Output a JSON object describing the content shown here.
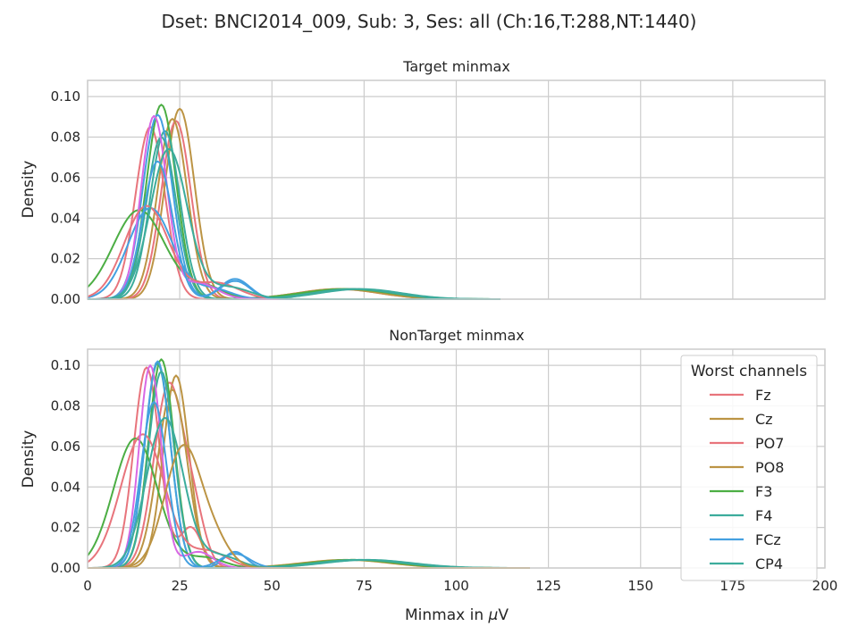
{
  "figure": {
    "suptitle": "Dset: BNCI2014_009, Sub: 3, Ses: all (Ch:16,T:288,NT:1440)",
    "shared_xlabel_main": "Minmax in ",
    "shared_xlabel_mu": "μ",
    "shared_xlabel_unit": "V"
  },
  "legend": {
    "title": "Worst channels",
    "entries": [
      {
        "name": "Fz",
        "color": "#e8747c"
      },
      {
        "name": "Cz",
        "color": "#bc9444"
      },
      {
        "name": "PO7",
        "color": "#e8747c"
      },
      {
        "name": "PO8",
        "color": "#bc9444"
      },
      {
        "name": "F3",
        "color": "#4cae44"
      },
      {
        "name": "F4",
        "color": "#3cac9c"
      },
      {
        "name": "FCz",
        "color": "#44a0e0"
      },
      {
        "name": "CP4",
        "color": "#3cac9c"
      }
    ]
  },
  "chart_data": [
    {
      "type": "line",
      "title": "Target minmax",
      "xlabel": "",
      "ylabel": "Density",
      "xlim": [
        0,
        200
      ],
      "ylim": [
        0,
        0.108
      ],
      "xticks": [
        0,
        25,
        50,
        75,
        100,
        125,
        150,
        175,
        200
      ],
      "yticks": [
        "0.00",
        "0.02",
        "0.04",
        "0.06",
        "0.08",
        "0.10"
      ],
      "grid": true,
      "series": [
        {
          "name": "Fz",
          "color": "#e8747c",
          "peak": 17,
          "height": 0.085,
          "width": 4,
          "tail_mean": 68,
          "tail_height": 0.005,
          "tail_width": 11
        },
        {
          "name": "Cz",
          "color": "#bc9444",
          "peak": 25,
          "height": 0.094,
          "width": 4,
          "tail_mean": 70,
          "tail_height": 0.005,
          "tail_width": 11
        },
        {
          "name": "PO7",
          "color": "#e8747c",
          "peak": 24,
          "height": 0.088,
          "width": 4,
          "tail_mean": 72,
          "tail_height": 0.005,
          "tail_width": 10
        },
        {
          "name": "PO8",
          "color": "#bc9444",
          "peak": 23,
          "height": 0.089,
          "width": 4,
          "tail_mean": 68,
          "tail_height": 0.005,
          "tail_width": 11
        },
        {
          "name": "F3",
          "color": "#4cae44",
          "peak": 20,
          "height": 0.096,
          "width": 4,
          "tail_mean": 70,
          "tail_height": 0.005,
          "tail_width": 12
        },
        {
          "name": "F4",
          "color": "#3cac9c",
          "peak": 21,
          "height": 0.083,
          "width": 4,
          "tail_mean": 72,
          "tail_height": 0.005,
          "tail_width": 11
        },
        {
          "name": "FCz",
          "color": "#44a0e0",
          "peak": 19,
          "height": 0.091,
          "width": 4,
          "tail_mean": 40,
          "tail_height": 0.01,
          "tail_width": 4
        },
        {
          "name": "CP4",
          "color": "#3cac9c",
          "peak": 20,
          "height": 0.08,
          "width": 4,
          "tail_mean": 74,
          "tail_height": 0.005,
          "tail_width": 11
        },
        {
          "name": "",
          "color": "#4cae44",
          "peak": 14,
          "height": 0.044,
          "width": 7,
          "tail_mean": 32,
          "tail_height": 0.006,
          "tail_width": 5
        },
        {
          "name": "",
          "color": "#44a0e0",
          "peak": 17,
          "height": 0.045,
          "width": 6,
          "tail_mean": 34,
          "tail_height": 0.005,
          "tail_width": 5
        },
        {
          "name": "",
          "color": "#d868e4",
          "peak": 18,
          "height": 0.09,
          "width": 3.5,
          "tail_mean": 30,
          "tail_height": 0.008,
          "tail_width": 5
        },
        {
          "name": "",
          "color": "#e8747c",
          "peak": 16,
          "height": 0.046,
          "width": 6,
          "tail_mean": 35,
          "tail_height": 0.008,
          "tail_width": 6
        },
        {
          "name": "",
          "color": "#44a0e0",
          "peak": 19,
          "height": 0.068,
          "width": 4,
          "tail_mean": 40,
          "tail_height": 0.009,
          "tail_width": 4
        },
        {
          "name": "",
          "color": "#3cac9c",
          "peak": 22,
          "height": 0.074,
          "width": 5,
          "tail_mean": 38,
          "tail_height": 0.006,
          "tail_width": 6
        }
      ]
    },
    {
      "type": "line",
      "title": "NonTarget minmax",
      "xlabel": "Minmax in μV",
      "ylabel": "Density",
      "xlim": [
        0,
        200
      ],
      "ylim": [
        0,
        0.108
      ],
      "xticks": [
        0,
        25,
        50,
        75,
        100,
        125,
        150,
        175,
        200
      ],
      "yticks": [
        "0.00",
        "0.02",
        "0.04",
        "0.06",
        "0.08",
        "0.10"
      ],
      "grid": true,
      "series": [
        {
          "name": "Fz",
          "color": "#e8747c",
          "peak": 16,
          "height": 0.099,
          "width": 3.5,
          "tail_mean": 28,
          "tail_height": 0.02,
          "tail_width": 3
        },
        {
          "name": "Cz",
          "color": "#bc9444",
          "peak": 24,
          "height": 0.095,
          "width": 3.5,
          "tail_mean": 70,
          "tail_height": 0.004,
          "tail_width": 12
        },
        {
          "name": "PO7",
          "color": "#e8747c",
          "peak": 22,
          "height": 0.09,
          "width": 4,
          "tail_mean": 29,
          "tail_height": 0.022,
          "tail_width": 3
        },
        {
          "name": "PO8",
          "color": "#bc9444",
          "peak": 23,
          "height": 0.088,
          "width": 4,
          "tail_mean": 72,
          "tail_height": 0.004,
          "tail_width": 12
        },
        {
          "name": "F3",
          "color": "#4cae44",
          "peak": 20,
          "height": 0.103,
          "width": 3.5,
          "tail_mean": 72,
          "tail_height": 0.004,
          "tail_width": 12
        },
        {
          "name": "F4",
          "color": "#3cac9c",
          "peak": 19,
          "height": 0.101,
          "width": 3.5,
          "tail_mean": 74,
          "tail_height": 0.004,
          "tail_width": 12
        },
        {
          "name": "FCz",
          "color": "#44a0e0",
          "peak": 19,
          "height": 0.102,
          "width": 3.5,
          "tail_mean": 40,
          "tail_height": 0.008,
          "tail_width": 3
        },
        {
          "name": "CP4",
          "color": "#3cac9c",
          "peak": 20,
          "height": 0.097,
          "width": 3.5,
          "tail_mean": 76,
          "tail_height": 0.004,
          "tail_width": 12
        },
        {
          "name": "",
          "color": "#4cae44",
          "peak": 13,
          "height": 0.064,
          "width": 6,
          "tail_mean": 32,
          "tail_height": 0.005,
          "tail_width": 5
        },
        {
          "name": "",
          "color": "#e8747c",
          "peak": 15,
          "height": 0.066,
          "width": 6,
          "tail_mean": 33,
          "tail_height": 0.008,
          "tail_width": 5
        },
        {
          "name": "",
          "color": "#d868e4",
          "peak": 17,
          "height": 0.1,
          "width": 3,
          "tail_mean": 30,
          "tail_height": 0.008,
          "tail_width": 4
        },
        {
          "name": "",
          "color": "#44a0e0",
          "peak": 18,
          "height": 0.082,
          "width": 3.5,
          "tail_mean": 40,
          "tail_height": 0.007,
          "tail_width": 4
        },
        {
          "name": "",
          "color": "#3cac9c",
          "peak": 21,
          "height": 0.074,
          "width": 5,
          "tail_mean": 36,
          "tail_height": 0.006,
          "tail_width": 5
        },
        {
          "name": "",
          "color": "#bc9444",
          "peak": 26,
          "height": 0.06,
          "width": 5,
          "tail_mean": 35,
          "tail_height": 0.01,
          "tail_width": 4
        }
      ]
    }
  ]
}
